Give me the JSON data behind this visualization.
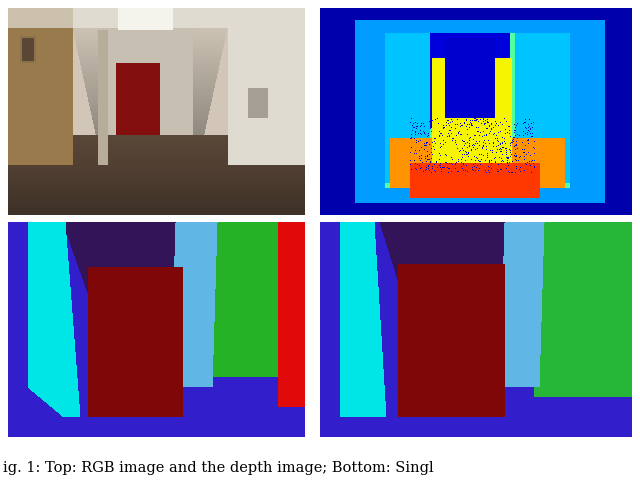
{
  "figure_width": 6.4,
  "figure_height": 4.83,
  "dpi": 100,
  "caption": "ig. 1: Top: RGB image and the depth image; Bottom: Singl",
  "caption_fontsize": 10.5,
  "bg_color": "#ffffff",
  "blue": [
    0.2,
    0.12,
    0.8
  ],
  "cyan": [
    0.0,
    0.9,
    0.9
  ],
  "dkpur": [
    0.2,
    0.08,
    0.35
  ],
  "dkred": [
    0.5,
    0.03,
    0.03
  ],
  "green": [
    0.15,
    0.7,
    0.15
  ],
  "red": [
    0.88,
    0.04,
    0.04
  ],
  "lblue": [
    0.38,
    0.72,
    0.9
  ],
  "green2": [
    0.15,
    0.72,
    0.22
  ]
}
